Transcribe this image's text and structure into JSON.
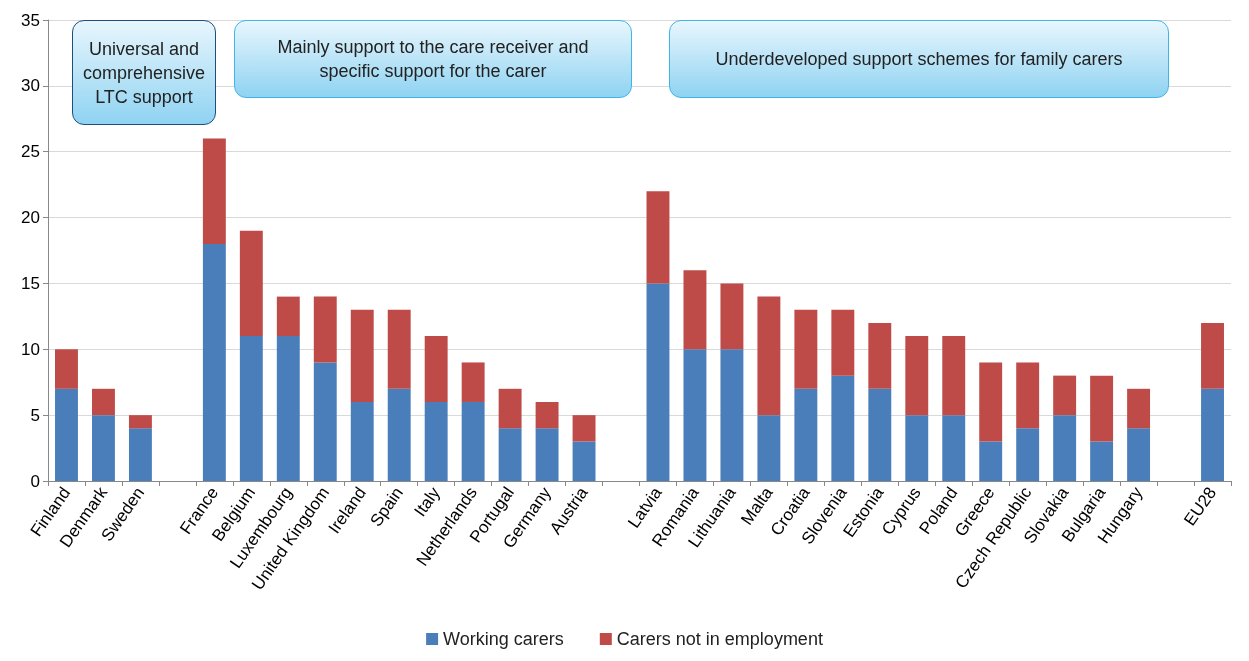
{
  "chart_data": {
    "type": "bar",
    "stacked": true,
    "categories": [
      "Finland",
      "Denmark",
      "Sweden",
      null,
      "France",
      "Belgium",
      "Luxembourg",
      "United Kingdom",
      "Ireland",
      "Spain",
      "Italy",
      "Netherlands",
      "Portugal",
      "Germany",
      "Austria",
      null,
      "Latvia",
      "Romania",
      "Lithuania",
      "Malta",
      "Croatia",
      "Slovenia",
      "Estonia",
      "Cyprus",
      "Poland",
      "Greece",
      "Czech Republic",
      "Slovakia",
      "Bulgaria",
      "Hungary",
      null,
      "EU28"
    ],
    "series": [
      {
        "name": "Working carers",
        "color": "#4a7ebb",
        "values": [
          7,
          5,
          4,
          null,
          18,
          11,
          11,
          9,
          6,
          7,
          6,
          6,
          4,
          4,
          3,
          null,
          15,
          10,
          10,
          5,
          7,
          8,
          7,
          5,
          5,
          3,
          4,
          5,
          3,
          4,
          null,
          7
        ]
      },
      {
        "name": "Carers not in employment",
        "color": "#be4b48",
        "values": [
          3,
          2,
          1,
          null,
          8,
          8,
          3,
          5,
          7,
          6,
          5,
          3,
          3,
          2,
          2,
          null,
          7,
          6,
          5,
          9,
          6,
          5,
          5,
          6,
          6,
          6,
          5,
          3,
          5,
          3,
          null,
          5
        ]
      }
    ],
    "ylim": [
      0,
      35
    ],
    "yticks": [
      0,
      5,
      10,
      15,
      20,
      25,
      30,
      35
    ],
    "grid": "y",
    "legend": "bottom",
    "annotations": [
      "Universal and comprehensive LTC support",
      "Mainly support to the care receiver and specific support for the carer",
      "Underdeveloped support schemes for family carers"
    ]
  }
}
